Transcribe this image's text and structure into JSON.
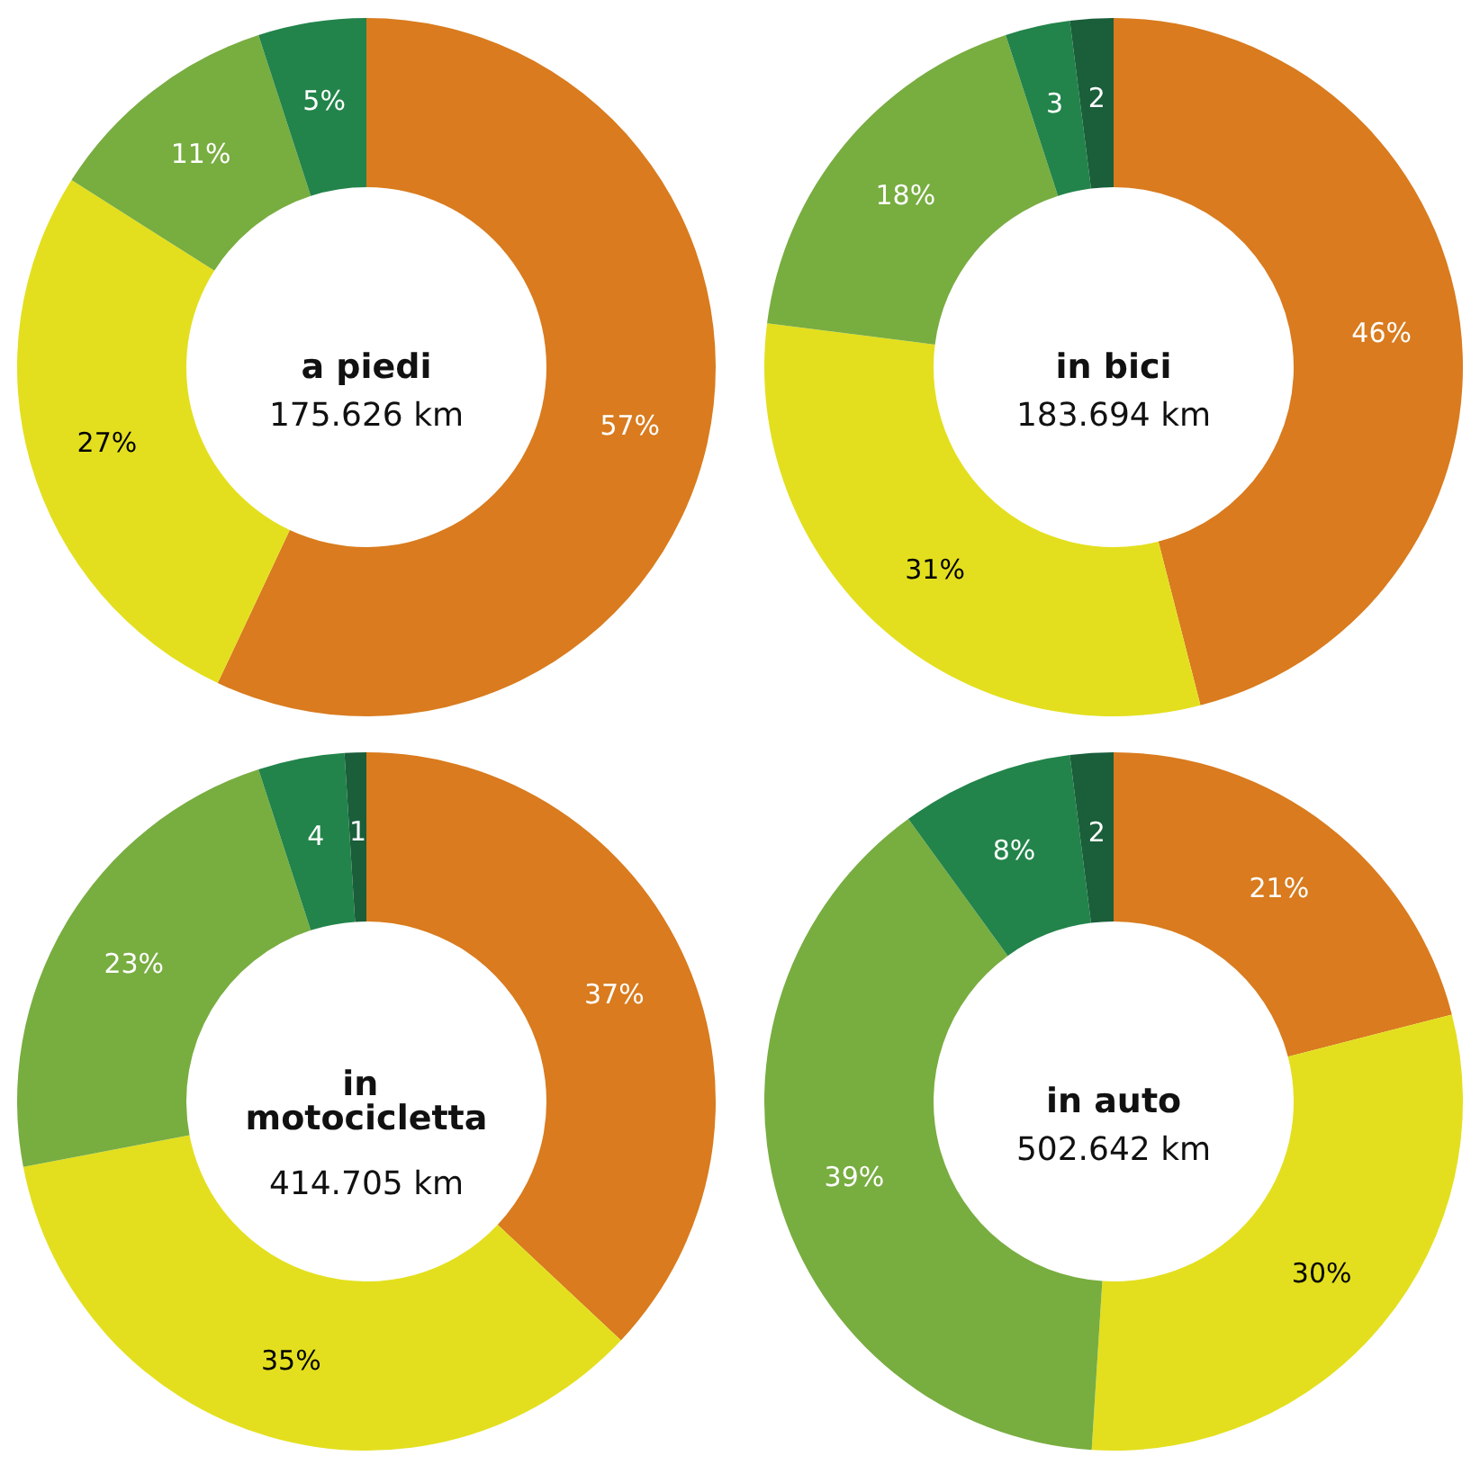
{
  "chart_data": [
    {
      "type": "donut",
      "title": "a piedi",
      "subtitle": "175.626 km",
      "categories": [
        null,
        null,
        null,
        null
      ],
      "values": [
        57,
        27,
        11,
        5
      ],
      "colors": [
        "#d97b1e",
        "#e3df1e",
        "#78ad40",
        "#22844a"
      ],
      "value_labels": [
        "57%",
        "27%",
        "11%",
        "5%"
      ]
    },
    {
      "type": "donut",
      "title": "in bici",
      "subtitle": "183.694 km",
      "categories": [
        null,
        null,
        null,
        null,
        null
      ],
      "values": [
        46,
        31,
        18,
        3,
        2
      ],
      "colors": [
        "#d97b1e",
        "#e3df1e",
        "#78ad40",
        "#22844a",
        "#1a5e3a"
      ],
      "value_labels": [
        "46%",
        "31%",
        "18%",
        "3",
        "2"
      ]
    },
    {
      "type": "donut",
      "title": "in motocicletta",
      "subtitle": "414.705 km",
      "categories": [
        null,
        null,
        null,
        null,
        null
      ],
      "values": [
        37,
        35,
        23,
        4,
        1
      ],
      "colors": [
        "#d97b1e",
        "#e3df1e",
        "#78ad40",
        "#22844a",
        "#1a5e3a"
      ],
      "value_labels": [
        "37%",
        "35%",
        "23%",
        "4",
        "1"
      ]
    },
    {
      "type": "donut",
      "title": "in auto",
      "subtitle": "502.642 km",
      "categories": [
        null,
        null,
        null,
        null,
        null
      ],
      "values": [
        21,
        30,
        39,
        8,
        2
      ],
      "colors": [
        "#d97b1e",
        "#e3df1e",
        "#78ad40",
        "#22844a",
        "#1a5e3a"
      ],
      "value_labels": [
        "21%",
        "30%",
        "39%",
        "8%",
        "2"
      ]
    }
  ]
}
